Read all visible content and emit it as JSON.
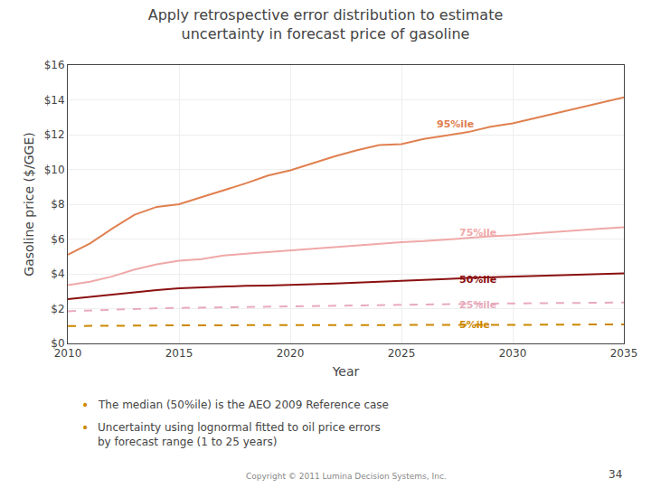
{
  "chart_data": {
    "type": "line",
    "title": "Apply retrospective error distribution to estimate\nuncertainty in forecast price of gasoline",
    "x_label": "Year",
    "y_label": "Gasoline price ($/GGE)",
    "x": [
      2010,
      2011,
      2012,
      2013,
      2014,
      2015,
      2016,
      2017,
      2018,
      2019,
      2020,
      2021,
      2022,
      2023,
      2024,
      2025,
      2026,
      2027,
      2028,
      2029,
      2030,
      2031,
      2032,
      2033,
      2034,
      2035
    ],
    "series": [
      {
        "name": "5%ile",
        "color": "#CC8800",
        "line_style": "dashed",
        "values": [
          1.0,
          1.0,
          1.01,
          1.02,
          1.03,
          1.04,
          1.04,
          1.04,
          1.04,
          1.04,
          1.04,
          1.04,
          1.04,
          1.04,
          1.04,
          1.04,
          1.05,
          1.05,
          1.06,
          1.06,
          1.07,
          1.07,
          1.08,
          1.08,
          1.09,
          1.09
        ]
      },
      {
        "name": "25%ile",
        "color": "#E8AABC",
        "line_style": "dashed",
        "values": [
          1.85,
          1.9,
          1.94,
          1.99,
          2.02,
          2.04,
          2.06,
          2.09,
          2.11,
          2.13,
          2.14,
          2.16,
          2.18,
          2.2,
          2.22,
          2.24,
          2.26,
          2.27,
          2.28,
          2.29,
          2.3,
          2.31,
          2.32,
          2.33,
          2.34,
          2.35
        ]
      },
      {
        "name": "50%ile",
        "color": "#8B1010",
        "line_style": "solid",
        "values": [
          2.55,
          2.68,
          2.82,
          2.97,
          3.07,
          3.17,
          3.22,
          3.28,
          3.31,
          3.33,
          3.36,
          3.39,
          3.44,
          3.49,
          3.54,
          3.57,
          3.63,
          3.7,
          3.76,
          3.8,
          3.84,
          3.88,
          3.92,
          3.96,
          3.99,
          4.03
        ]
      },
      {
        "name": "75%ile",
        "color": "#F0A8A8",
        "line_style": "solid",
        "values": [
          3.35,
          3.55,
          3.85,
          4.25,
          4.55,
          4.75,
          4.85,
          5.05,
          5.15,
          5.25,
          5.35,
          5.45,
          5.55,
          5.65,
          5.75,
          5.82,
          5.88,
          5.96,
          6.06,
          6.16,
          6.22,
          6.32,
          6.42,
          6.52,
          6.6,
          6.68
        ]
      },
      {
        "name": "95%ile",
        "color": "#E08050",
        "line_style": "solid",
        "values": [
          5.1,
          5.75,
          6.6,
          7.4,
          7.85,
          8.0,
          8.4,
          8.8,
          9.2,
          9.65,
          9.95,
          10.35,
          10.75,
          11.1,
          11.4,
          11.45,
          11.75,
          11.95,
          12.15,
          12.45,
          12.65,
          12.95,
          13.25,
          13.55,
          13.85,
          14.15
        ]
      }
    ],
    "annotations": [
      {
        "text": "95%ile",
        "x": 2026.5,
        "y": 12.6,
        "color": "#E08050"
      },
      {
        "text": "75%ile",
        "x": 2027.5,
        "y": 6.35,
        "color": "#F0A8A8"
      },
      {
        "text": "50%ile",
        "x": 2027.5,
        "y": 3.68,
        "color": "#8B1010"
      },
      {
        "text": "25%ile",
        "x": 2027.5,
        "y": 2.22,
        "color": "#E8AABC"
      },
      {
        "text": "5%ile",
        "x": 2027.5,
        "y": 1.04,
        "color": "#CC8800"
      }
    ],
    "xlim": [
      2010,
      2035
    ],
    "xticks": [
      2010,
      2015,
      2020,
      2025,
      2030,
      2035
    ],
    "ylim": [
      0,
      16
    ],
    "yticks": [
      {
        "value": 0,
        "label": "$0"
      },
      {
        "value": 2,
        "label": "$2"
      },
      {
        "value": 4,
        "label": "$4"
      },
      {
        "value": 6,
        "label": "$6"
      },
      {
        "value": 8,
        "label": "$8"
      },
      {
        "value": 10,
        "label": "$10"
      },
      {
        "value": 12,
        "label": "$12"
      },
      {
        "value": 14,
        "label": "$14"
      },
      {
        "value": 16,
        "label": "$16"
      }
    ],
    "grid": true,
    "bullets": {
      "symbol": "•",
      "color": "#CC8800",
      "items": [
        "The median (50%ile) is the AEO 2009 Reference case",
        "Uncertainty using lognormal fitted to oil price errors\nby forecast range (1 to 25 years)"
      ]
    },
    "footer": "Copyright © 2011 Lumina Decision Systems, Inc.",
    "page_number": "34"
  }
}
